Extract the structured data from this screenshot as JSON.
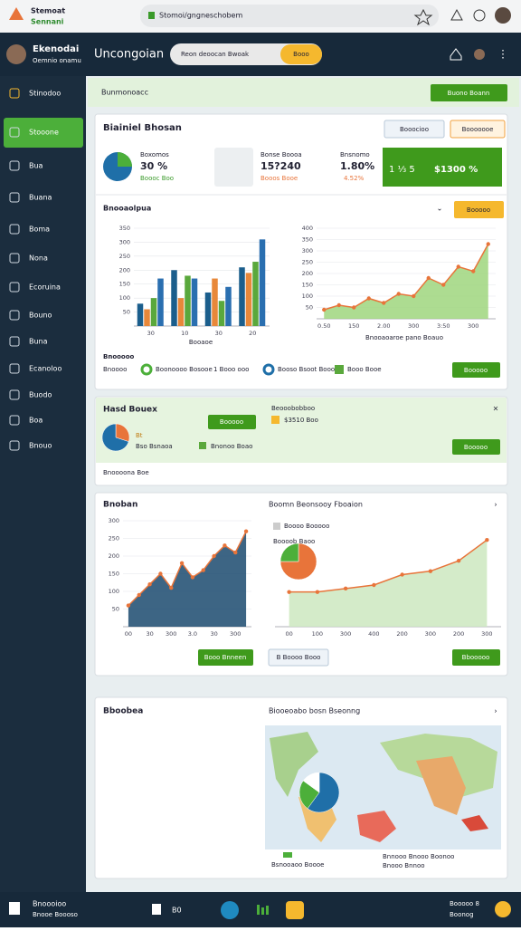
{
  "browser": {
    "logo_line1": "Stemoat",
    "logo_line2": "Sennani",
    "url": "Stomoi/gngneschobem"
  },
  "header": {
    "user_name": "Ekenodai",
    "user_role": "Oemnio onamu",
    "title": "Uncongoian",
    "search_placeholder": "Reon deoocan Bwoak",
    "search_button": "Booo"
  },
  "sidebar": [
    "Stinodoo",
    "Stooone",
    "Bua",
    "Buana",
    "Boma",
    "Nona",
    "Ecoruina",
    "Bouno",
    "Buna",
    "Ecanoloo",
    "Buodo",
    "Boa",
    "Bnouo"
  ],
  "breadcrumb": {
    "title": "Bunmonoacc",
    "button": "Buono Boann"
  },
  "overview": {
    "title": "Biainiel Bhosan",
    "buttons": [
      "Booocioo",
      "Booooooe"
    ],
    "stats": [
      {
        "label": "Boxomos",
        "value": "30 %",
        "sub": "Boooc Boo"
      },
      {
        "label": "Bonse Boooa",
        "value": "15?240",
        "sub": "Booos Booe"
      },
      {
        "label": "Bnsnomo",
        "value": "1.80%",
        "sub": "4.52%"
      }
    ],
    "highlight": {
      "left": "1 ⅓ 5",
      "right": "$1300 %"
    },
    "subtitle": "Bnooaolpua",
    "filter_button": "Booooo",
    "bar_chart": {
      "type": "bar",
      "ylim": [
        0,
        350
      ],
      "yticks": [
        50,
        100,
        150,
        200,
        250,
        300,
        350
      ],
      "categories": [
        "30",
        "10",
        "30",
        "20"
      ],
      "series": [
        {
          "color": "#1b5e8c",
          "values": [
            80,
            200,
            120,
            210
          ]
        },
        {
          "color": "#e8883a",
          "values": [
            60,
            100,
            170,
            190
          ]
        },
        {
          "color": "#5aa83c",
          "values": [
            100,
            180,
            90,
            230
          ]
        },
        {
          "color": "#2a6fb0",
          "values": [
            170,
            170,
            140,
            310
          ]
        }
      ],
      "x_title": "Booaoe"
    },
    "line_chart": {
      "type": "area",
      "ylim": [
        0,
        400
      ],
      "yticks": [
        50,
        100,
        150,
        200,
        250,
        300,
        350,
        400
      ],
      "categories": [
        "0.50",
        null,
        "150",
        null,
        "2.00",
        null,
        "300",
        null,
        "3:50",
        null,
        "300",
        null
      ],
      "series": [
        {
          "color": "#e8743a",
          "fill": "#9fd67e",
          "values": [
            40,
            60,
            50,
            90,
            70,
            110,
            100,
            180,
            150,
            230,
            210,
            330
          ]
        }
      ],
      "x_title": "Bnooaoaroe pano Boauo"
    },
    "legend_title": "Bnooooo",
    "legend": [
      "Bnoooo",
      "Boonoooo Bosooe",
      "1 Booo ooo",
      "Booso Bsoot Booooe",
      "Booo Booe"
    ],
    "action_button": "Booooo"
  },
  "summary": {
    "title": "Hasd Bouex",
    "pie": {
      "type": "pie",
      "values": [
        30,
        70
      ],
      "colors": [
        "#e8743a",
        "#1f6fa8"
      ]
    },
    "pie_label": "Bt",
    "pie_caption": "Bso Bsnaoa",
    "button": "Booooo",
    "legend": "Bnonoo Boao",
    "right_title": "Beooobobboo",
    "right_value": "$3510 Boo",
    "right_button": "Booooo",
    "footer": "Bnoooona Boe"
  },
  "trends": {
    "title": "Bnoban",
    "area_chart": {
      "type": "area",
      "ylim": [
        0,
        300
      ],
      "yticks": [
        50,
        100,
        150,
        200,
        250,
        300
      ],
      "categories": [
        "00",
        null,
        "30",
        null,
        "300",
        null,
        "3.0",
        null,
        "30",
        null,
        "300",
        null
      ],
      "series": [
        {
          "color": "#e8743a",
          "fill": "#1b4a6e",
          "values": [
            60,
            90,
            120,
            150,
            110,
            180,
            140,
            160,
            200,
            230,
            210,
            270
          ]
        }
      ]
    },
    "right_title": "Boomn Beonsooy Fboaion",
    "right_legend": "Boooo Booooo",
    "right_caption": "Boooob Baoo",
    "right_pie": {
      "type": "pie",
      "values": [
        75,
        25
      ],
      "colors": [
        "#e8743a",
        "#4caf3a"
      ]
    },
    "right_chart": {
      "type": "area",
      "ylim": [
        0,
        300
      ],
      "categories": [
        "00",
        "100",
        "300",
        "400",
        "200",
        "300",
        "200",
        "300"
      ],
      "series": [
        {
          "color": "#e8743a",
          "fill": "#cde8bf",
          "values": [
            100,
            100,
            110,
            120,
            150,
            160,
            190,
            250
          ]
        }
      ]
    },
    "buttons": [
      "Booo Bnneen",
      "B Boooo Booo",
      "Bbooooo"
    ]
  },
  "map_card": {
    "title": "Bboobea",
    "right_title": "Biooeoabo bosn Bseonng",
    "pie": {
      "type": "pie",
      "values": [
        60,
        25,
        15
      ],
      "colors": [
        "#1f6fa8",
        "#4caf3a",
        "#ffffff"
      ]
    },
    "caption": "Bsnooaoo Boooe",
    "legend": [
      "Bnnooo Bnooo Boonoo",
      "Bnooo Bnnoo"
    ]
  },
  "footer": {
    "line1": "Bnoooioo",
    "line2": "Bnooe Boooso",
    "center": "B0",
    "right1": "Booooo 8",
    "right2": "Boonog"
  }
}
